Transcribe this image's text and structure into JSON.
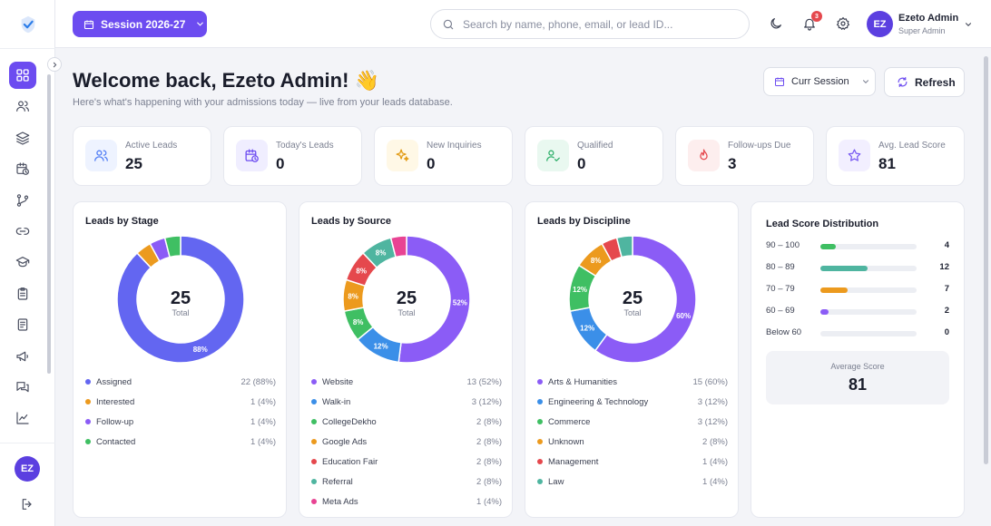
{
  "header": {
    "session_label": "Session 2026-27",
    "search_placeholder": "Search by name, phone, email, or lead ID...",
    "notifications_count": "3",
    "user_initials": "EZ",
    "user_name": "Ezeto Admin",
    "user_role": "Super Admin"
  },
  "sidebar": {
    "avatar_initials": "EZ",
    "items": [
      "dashboard",
      "users",
      "layers",
      "calendar-clock",
      "git-branch",
      "link",
      "graduation-cap",
      "clipboard",
      "file-text",
      "megaphone",
      "messages",
      "trending-up"
    ]
  },
  "main": {
    "welcome": "Welcome back, Ezeto Admin! 👋",
    "subtitle": "Here's what's happening with your admissions today — live from your leads database.",
    "curr_session_label": "Curr Session",
    "refresh_label": "Refresh"
  },
  "stats": [
    {
      "label": "Active Leads",
      "value": "25",
      "icon": "users-icon",
      "color": "#4f7cf5",
      "bg": "#eef3ff"
    },
    {
      "label": "Today's Leads",
      "value": "0",
      "icon": "calendar-clock-icon",
      "color": "#6c4cf0",
      "bg": "#f0eeff"
    },
    {
      "label": "New Inquiries",
      "value": "0",
      "icon": "sparkles-icon",
      "color": "#e29a12",
      "bg": "#fff8e6"
    },
    {
      "label": "Qualified",
      "value": "0",
      "icon": "user-check-icon",
      "color": "#2eaf6a",
      "bg": "#e9f8f0"
    },
    {
      "label": "Follow-ups Due",
      "value": "3",
      "icon": "flame-icon",
      "color": "#e5484d",
      "bg": "#fdeeee"
    },
    {
      "label": "Avg. Lead Score",
      "value": "81",
      "icon": "star-icon",
      "color": "#7a5cf2",
      "bg": "#f2efff"
    }
  ],
  "chart_data": [
    {
      "type": "pie",
      "title": "Leads by Stage",
      "center_value": "25",
      "center_label": "Total",
      "slice_labels": [
        "88%",
        "",
        "",
        ""
      ],
      "categories": [
        "Assigned",
        "Interested",
        "Follow-up",
        "Contacted"
      ],
      "values": [
        22,
        1,
        1,
        1
      ],
      "value_labels": [
        "22 (88%)",
        "1 (4%)",
        "1 (4%)",
        "1 (4%)"
      ],
      "colors": [
        "#6366f1",
        "#ec9a1e",
        "#8b5cf6",
        "#3fbf63"
      ]
    },
    {
      "type": "pie",
      "title": "Leads by Source",
      "center_value": "25",
      "center_label": "Total",
      "slice_labels": [
        "52%",
        "12%",
        "8%",
        "8%",
        "8%",
        "8%",
        ""
      ],
      "categories": [
        "Website",
        "Walk-in",
        "CollegeDekho",
        "Google Ads",
        "Education Fair",
        "Referral",
        "Meta Ads"
      ],
      "values": [
        13,
        3,
        2,
        2,
        2,
        2,
        1
      ],
      "value_labels": [
        "13 (52%)",
        "3 (12%)",
        "2 (8%)",
        "2 (8%)",
        "2 (8%)",
        "2 (8%)",
        "1 (4%)"
      ],
      "colors": [
        "#8b5cf6",
        "#3b8fe8",
        "#3fbf63",
        "#ec9a1e",
        "#e5484d",
        "#4fb5a0",
        "#e84393"
      ]
    },
    {
      "type": "pie",
      "title": "Leads by Discipline",
      "center_value": "25",
      "center_label": "Total",
      "slice_labels": [
        "60%",
        "12%",
        "12%",
        "8%",
        "",
        ""
      ],
      "categories": [
        "Arts & Humanities",
        "Engineering & Technology",
        "Commerce",
        "Unknown",
        "Management",
        "Law"
      ],
      "values": [
        15,
        3,
        3,
        2,
        1,
        1
      ],
      "value_labels": [
        "15 (60%)",
        "3 (12%)",
        "3 (12%)",
        "2 (8%)",
        "1 (4%)",
        "1 (4%)"
      ],
      "colors": [
        "#8b5cf6",
        "#3b8fe8",
        "#3fbf63",
        "#ec9a1e",
        "#e5484d",
        "#4fb5a0"
      ]
    },
    {
      "type": "bar",
      "title": "Lead Score Distribution",
      "categories": [
        "90 – 100",
        "80 – 89",
        "70 – 79",
        "60 – 69",
        "Below 60"
      ],
      "values": [
        4,
        12,
        7,
        2,
        0
      ],
      "colors": [
        "#3fbf63",
        "#4fb5a0",
        "#ec9a1e",
        "#8b5cf6",
        "#9aa0ad"
      ],
      "average_label": "Average Score",
      "average_value": "81"
    }
  ]
}
